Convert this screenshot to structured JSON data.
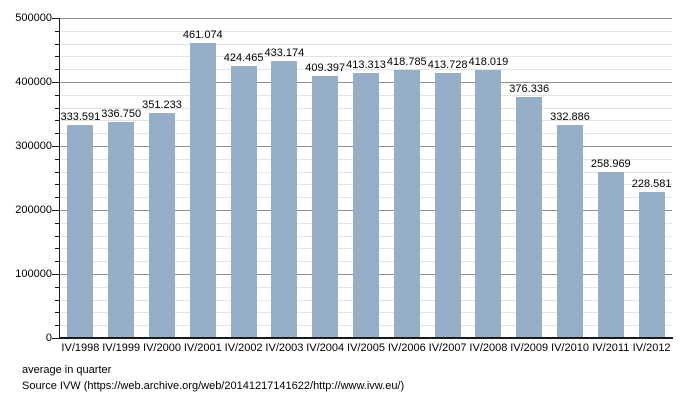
{
  "chart_data": {
    "type": "bar",
    "title": "",
    "categories": [
      "IV/1998",
      "IV/1999",
      "IV/2000",
      "IV/2001",
      "IV/2002",
      "IV/2003",
      "IV/2004",
      "IV/2005",
      "IV/2006",
      "IV/2007",
      "IV/2008",
      "IV/2009",
      "IV/2010",
      "IV/2011",
      "IV/2012"
    ],
    "values": [
      333591,
      336750,
      351233,
      461074,
      424465,
      433174,
      409397,
      413313,
      418785,
      413728,
      418019,
      376336,
      332886,
      258969,
      228581
    ],
    "value_labels": [
      "333.591",
      "336.750",
      "351.233",
      "461.074",
      "424.465",
      "433.174",
      "409.397",
      "413.313",
      "418.785",
      "413.728",
      "418.019",
      "376.336",
      "332.886",
      "258.969",
      "228.581"
    ],
    "xlabel": "",
    "ylabel": "",
    "ylim": [
      0,
      500000
    ],
    "y_major_step": 100000,
    "y_minor_step": 20000,
    "y_tick_labels": [
      "0",
      "100000",
      "200000",
      "300000",
      "400000",
      "500000"
    ],
    "grid": true,
    "legend_position": "none",
    "bar_color": "#97aec9",
    "major_grid_color": "#8f8f8f",
    "minor_grid_color": "#e3e3e3",
    "axis_color": "#1a1a1a"
  },
  "footer": {
    "line1": "average in quarter",
    "line2": "Source IVW (https://web.archive.org/web/20141217141622/http://www.ivw.eu/)"
  }
}
